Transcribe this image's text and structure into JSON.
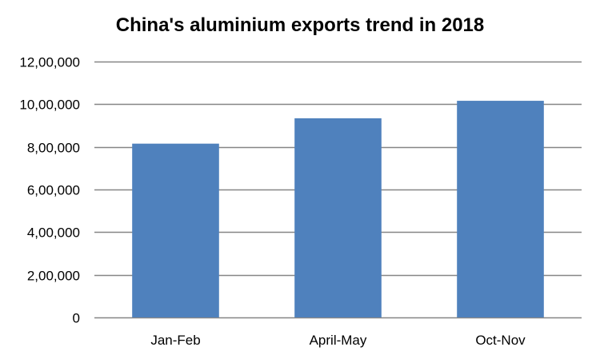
{
  "chart_data": {
    "type": "bar",
    "title": "China's aluminium exports trend in 2018",
    "categories": [
      "Jan-Feb",
      "April-May",
      "Oct-Nov"
    ],
    "values": [
      815000,
      934000,
      1016000
    ],
    "ylim": [
      0,
      1200000
    ],
    "yticks": [
      0,
      200000,
      400000,
      600000,
      800000,
      1000000,
      1200000
    ],
    "ytick_labels": [
      "0",
      "2,00,000",
      "4,00,000",
      "6,00,000",
      "8,00,000",
      "10,00,000",
      "12,00,000"
    ],
    "xlabel": "",
    "ylabel": "",
    "grid": true,
    "legend": "none",
    "bar_color": "#4F81BD"
  }
}
